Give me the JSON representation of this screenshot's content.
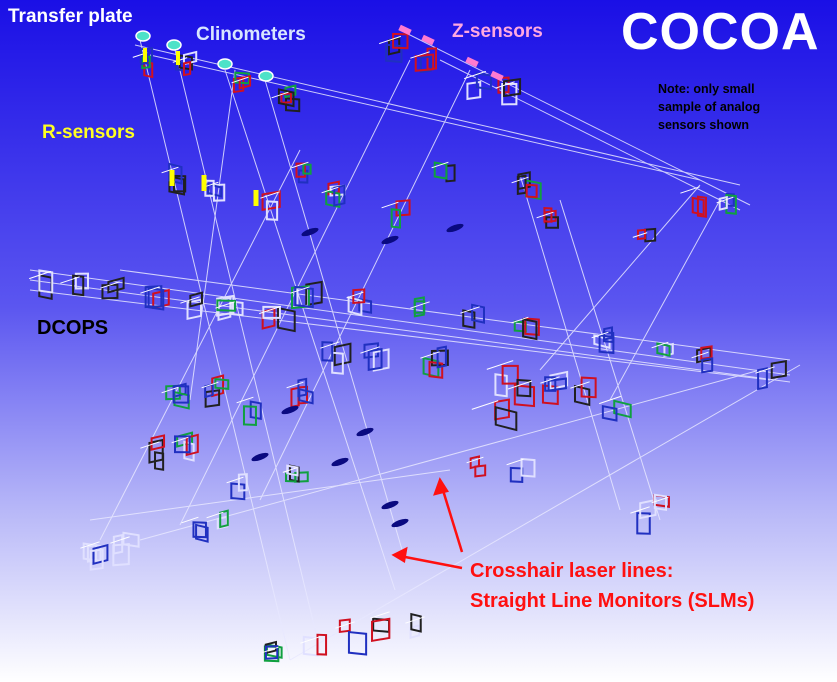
{
  "title": "COCOA",
  "labels": {
    "transfer_plate": "Transfer plate",
    "clinometers": "Clinometers",
    "z_sensors": "Z-sensors",
    "r_sensors": "R-sensors",
    "dcops": "DCOPS",
    "note_line1": "Note: only small",
    "note_line2": "sample of analog",
    "note_line3": "sensors shown",
    "crosshair_line1": "Crosshair laser lines:",
    "crosshair_line2": "Straight Line Monitors (SLMs)"
  },
  "colors": {
    "background_top": "#1a10e8",
    "background_bottom": "#ffffff",
    "clinometers": "#d8e6ff",
    "z_sensors": "#ffa8e0",
    "r_sensors": "#ffff22",
    "crosshair": "#ff1010",
    "clinometer_marker": "#4de2c8",
    "r_sensor_marker": "#ffff00",
    "z_sensor_marker": "#ff7ad0"
  }
}
